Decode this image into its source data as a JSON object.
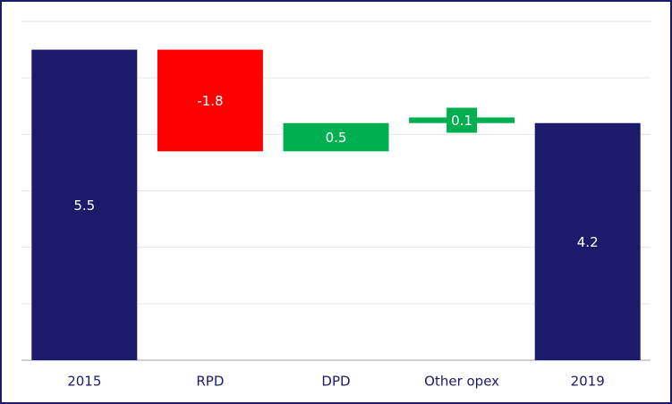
{
  "chart_data": {
    "type": "waterfall",
    "categories": [
      "2015",
      "RPD",
      "DPD",
      "Other opex",
      "2019"
    ],
    "values": [
      5.5,
      -1.8,
      0.5,
      0.1,
      4.2
    ],
    "totals": [
      true,
      false,
      false,
      false,
      true
    ],
    "colors": [
      "#1b1a6b",
      "#ff0000",
      "#00b050",
      "#00b050",
      "#1b1a6b"
    ],
    "ylim": [
      0,
      6
    ],
    "yticks": [
      0,
      1,
      2,
      3,
      4,
      5,
      6
    ],
    "grid": true
  }
}
